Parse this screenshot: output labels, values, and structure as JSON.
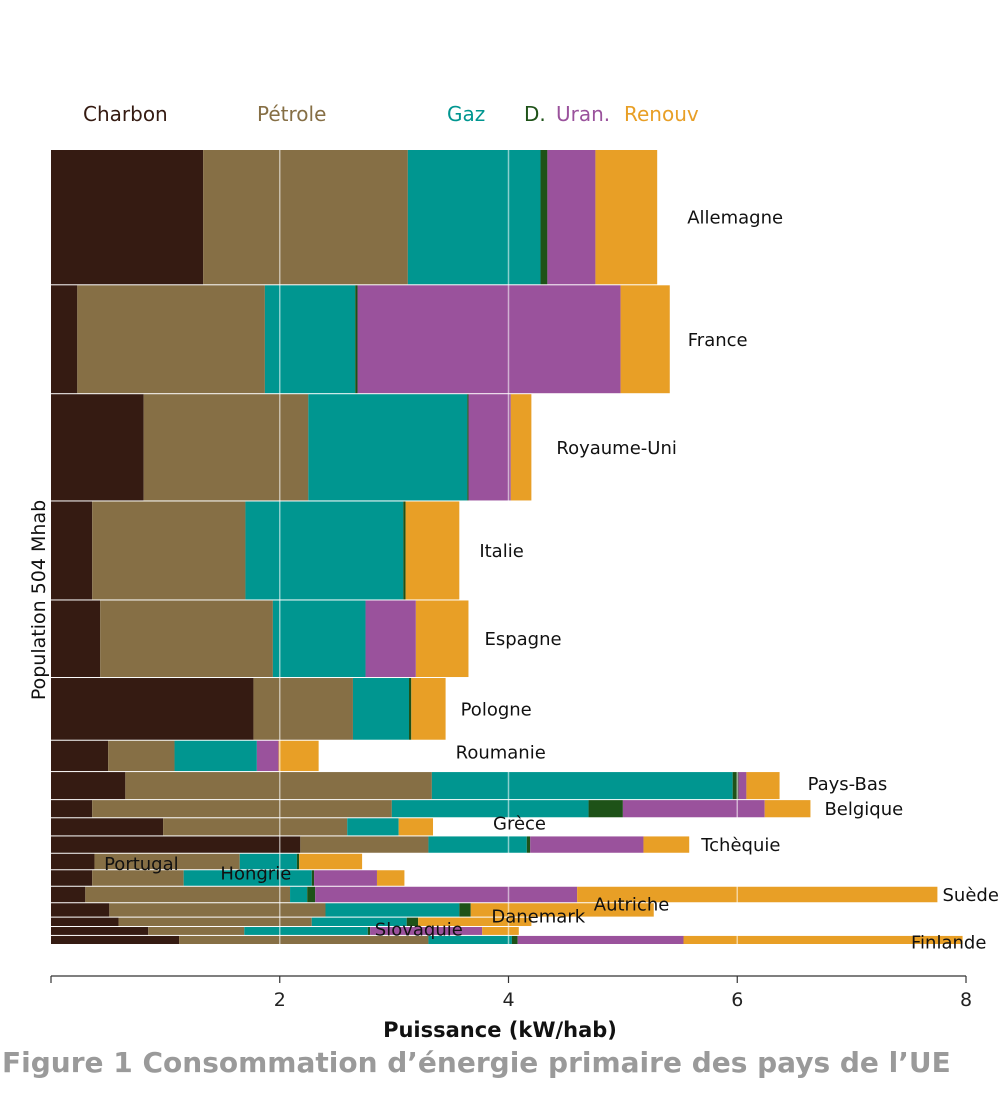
{
  "caption": "Figure 1 Consommation d’énergie primaire des pays de l’UE",
  "chart_data": {
    "type": "bar",
    "layout": "stacked-horizontal-variable-height",
    "xlabel": "Puissance (kW/hab)",
    "ylabel": "Population 504 Mhab",
    "xlim": [
      0,
      8
    ],
    "xticks": [
      2,
      4,
      6,
      8
    ],
    "grid": "vertical",
    "legend_position": "top",
    "series": [
      {
        "name": "Charbon",
        "color": "#351b12"
      },
      {
        "name": "Pétrole",
        "color": "#866f45"
      },
      {
        "name": "Gaz",
        "color": "#009690"
      },
      {
        "name": "D.",
        "color": "#1e5218"
      },
      {
        "name": "Uran.",
        "color": "#9a529c"
      },
      {
        "name": "Renouv",
        "color": "#e89f26"
      }
    ],
    "countries": [
      {
        "name": "Allemagne",
        "population": 82,
        "values": [
          1.33,
          1.79,
          1.16,
          0.06,
          0.42,
          0.54
        ]
      },
      {
        "name": "France",
        "population": 66,
        "values": [
          0.23,
          1.64,
          0.79,
          0.02,
          2.3,
          0.43
        ]
      },
      {
        "name": "Royaume-Uni",
        "population": 65,
        "values": [
          0.81,
          1.44,
          1.39,
          0.01,
          0.37,
          0.18
        ]
      },
      {
        "name": "Italie",
        "population": 60,
        "values": [
          0.36,
          1.34,
          1.38,
          0.02,
          0.0,
          0.47
        ]
      },
      {
        "name": "Espagne",
        "population": 47,
        "values": [
          0.43,
          1.51,
          0.81,
          0.0,
          0.44,
          0.46
        ]
      },
      {
        "name": "Pologne",
        "population": 38,
        "values": [
          1.77,
          0.87,
          0.49,
          0.02,
          0.0,
          0.3
        ]
      },
      {
        "name": "Roumanie",
        "population": 19,
        "values": [
          0.5,
          0.58,
          0.72,
          0.0,
          0.19,
          0.35
        ]
      },
      {
        "name": "Pays-Bas",
        "population": 17,
        "values": [
          0.65,
          2.68,
          2.63,
          0.05,
          0.07,
          0.29
        ]
      },
      {
        "name": "Belgique",
        "population": 11,
        "values": [
          0.36,
          2.62,
          1.72,
          0.3,
          1.24,
          0.4
        ]
      },
      {
        "name": "Grèce",
        "population": 11,
        "values": [
          0.98,
          1.61,
          0.45,
          0.0,
          0.0,
          0.3
        ]
      },
      {
        "name": "Tchèquie",
        "population": 10.5,
        "values": [
          2.18,
          1.12,
          0.86,
          0.03,
          0.99,
          0.4
        ]
      },
      {
        "name": "Portugal",
        "population": 10,
        "values": [
          0.38,
          1.27,
          0.5,
          0.02,
          0.0,
          0.55
        ]
      },
      {
        "name": "Hongrie",
        "population": 10,
        "values": [
          0.36,
          0.8,
          1.12,
          0.02,
          0.55,
          0.24
        ]
      },
      {
        "name": "Suède",
        "population": 10,
        "values": [
          0.3,
          1.79,
          0.15,
          0.07,
          2.29,
          3.15
        ]
      },
      {
        "name": "Autriche",
        "population": 8.7,
        "values": [
          0.51,
          1.89,
          1.17,
          0.1,
          0.0,
          1.6
        ]
      },
      {
        "name": "Danemark",
        "population": 5.7,
        "values": [
          0.59,
          1.69,
          0.83,
          0.1,
          0.0,
          0.99
        ]
      },
      {
        "name": "Slovaquie",
        "population": 5.4,
        "values": [
          0.85,
          0.84,
          1.08,
          0.02,
          0.98,
          0.32
        ]
      },
      {
        "name": "Finlande",
        "population": 5.5,
        "values": [
          1.12,
          2.18,
          0.73,
          0.05,
          1.45,
          2.44
        ]
      }
    ]
  }
}
